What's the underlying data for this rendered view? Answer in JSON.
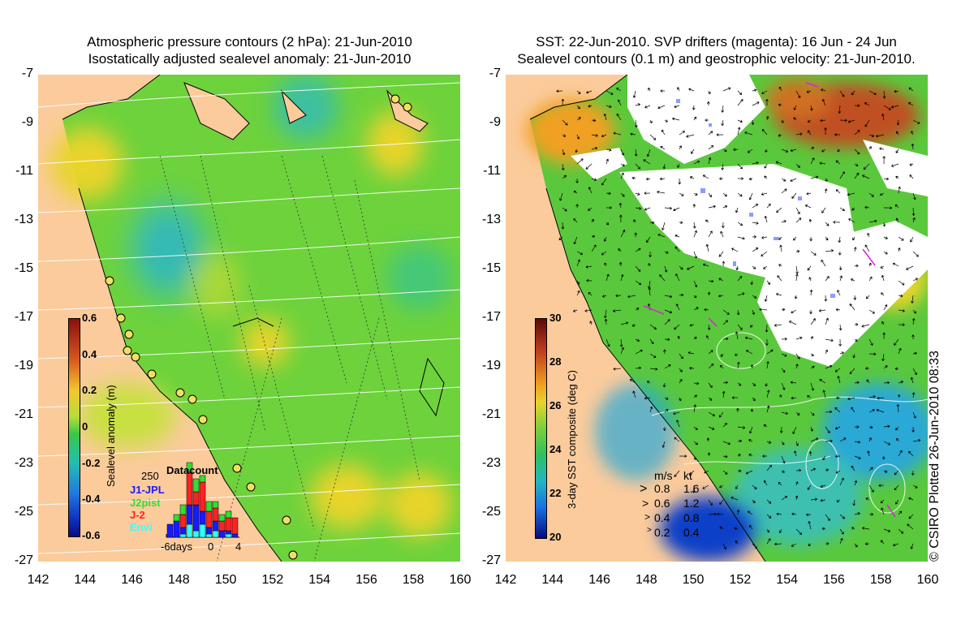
{
  "left_panel": {
    "title_line1": "Atmospheric pressure contours (2 hPa): 21-Jun-2010",
    "title_line2": "Isostatically adjusted sealevel anomaly: 21-Jun-2010",
    "colorbar": {
      "label": "Sealevel anomaly (m)",
      "ticks": [
        "0.6",
        "0.4",
        "0.2",
        "0",
        "-0.2",
        "-0.4",
        "-0.6"
      ],
      "range": [
        -0.6,
        0.6
      ]
    },
    "datacount": {
      "title": "Datacount",
      "max_label": "250",
      "x_labels": [
        "-6days",
        "0",
        "4"
      ],
      "legend": [
        {
          "label": "J1-JPL",
          "color": "#1a1aff"
        },
        {
          "label": "J2pist",
          "color": "#33dd33"
        },
        {
          "label": "J-2",
          "color": "#ff2222"
        },
        {
          "label": "Envi",
          "color": "#33ffff"
        }
      ]
    }
  },
  "right_panel": {
    "title_line1": "SST: 22-Jun-2010. SVP drifters (magenta): 16 Jun - 24 Jun",
    "title_line2": "Sealevel contours (0.1 m) and geostrophic velocity: 21-Jun-2010.",
    "colorbar": {
      "label": "3-day SST composite (deg C)",
      "ticks": [
        "30",
        "28",
        "26",
        "24",
        "22",
        "20"
      ],
      "range": [
        20,
        30
      ]
    },
    "velocity_key": {
      "header_ms": "m/s",
      "header_kt": "kt",
      "rows": [
        {
          "ms": "0.8",
          "kt": "1.6"
        },
        {
          "ms": "0.6",
          "kt": "1.2"
        },
        {
          "ms": "0.4",
          "kt": "0.8"
        },
        {
          "ms": "0.2",
          "kt": "0.4"
        }
      ]
    },
    "credit": "© CSIRO Plotted 26-Jun-2010 08:33"
  },
  "axes": {
    "y_ticks": [
      "-7",
      "-9",
      "-11",
      "-13",
      "-15",
      "-17",
      "-19",
      "-21",
      "-23",
      "-25",
      "-27"
    ],
    "x_ticks": [
      "142",
      "144",
      "146",
      "148",
      "150",
      "152",
      "154",
      "156",
      "158",
      "160"
    ],
    "lon_range": [
      142,
      160
    ],
    "lat_range": [
      -27,
      -7
    ]
  },
  "colors": {
    "land": "#fbcb9c",
    "ocean_mid": "#6dd23c",
    "ocean_high": "#e8d42a",
    "ocean_low": "#2aa8d6",
    "cloud": "#ffffff"
  }
}
